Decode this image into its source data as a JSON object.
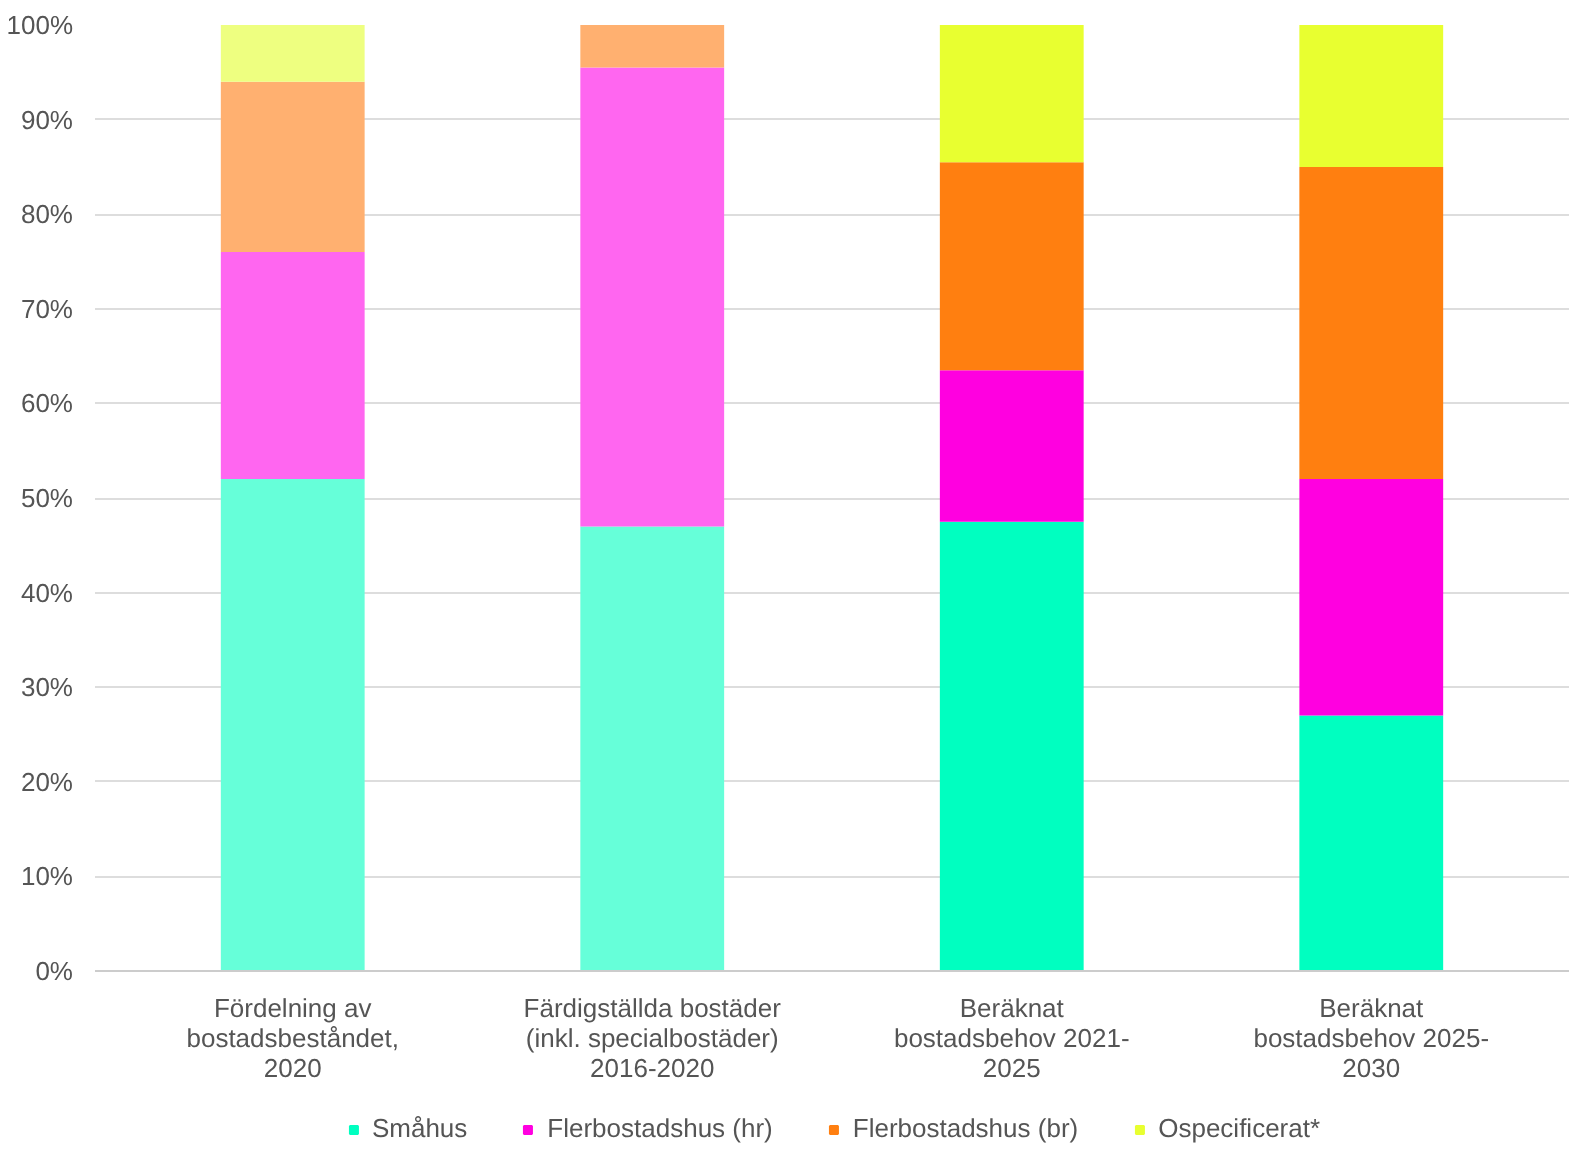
{
  "chart_data": {
    "type": "bar",
    "stacked": true,
    "categories": [
      "Fördelning av\nbostadsbeståndet,\n2020",
      "Färdigställda bostäder\n(inkl. specialbostäder)\n2016-2020",
      "Beräknat\nbostadsbehov 2021-\n2025",
      "Beräknat\nbostadsbehov 2025-\n2030"
    ],
    "series": [
      {
        "name": "Småhus",
        "color": "#00ffc0",
        "colors": [
          "#66ffd9",
          "#66ffd9",
          "#00ffc0",
          "#00ffc0"
        ],
        "values": [
          52,
          47,
          47.5,
          27
        ]
      },
      {
        "name": "Flerbostadshus (hr)",
        "color": "#ff00e0",
        "colors": [
          "#ff66f0",
          "#ff66f0",
          "#ff00e0",
          "#ff00e0"
        ],
        "values": [
          24,
          48.5,
          16,
          25
        ]
      },
      {
        "name": "Flerbostadshus (br)",
        "color": "#ff7f10",
        "colors": [
          "#ffb070",
          "#ffb070",
          "#ff7f10",
          "#ff7f10"
        ],
        "values": [
          18,
          4.5,
          22,
          33
        ]
      },
      {
        "name": "Ospecificerat*",
        "color": "#e8ff30",
        "colors": [
          "#eeff80",
          "#eeff80",
          "#e8ff30",
          "#e8ff30"
        ],
        "values": [
          6,
          0,
          14.5,
          15
        ]
      }
    ],
    "ylim": [
      0,
      100
    ],
    "yticks": [
      {
        "value": 0,
        "label": "0%"
      },
      {
        "value": 10,
        "label": "10%"
      },
      {
        "value": 20,
        "label": "20%"
      },
      {
        "value": 30,
        "label": "30%"
      },
      {
        "value": 40,
        "label": "40%"
      },
      {
        "value": 50,
        "label": "50%"
      },
      {
        "value": 60,
        "label": "60%"
      },
      {
        "value": 70,
        "label": "70%"
      },
      {
        "value": 80,
        "label": "80%"
      },
      {
        "value": 90,
        "label": "90%"
      },
      {
        "value": 100,
        "label": "100%"
      }
    ],
    "grid": "y",
    "legend": "bottom"
  }
}
